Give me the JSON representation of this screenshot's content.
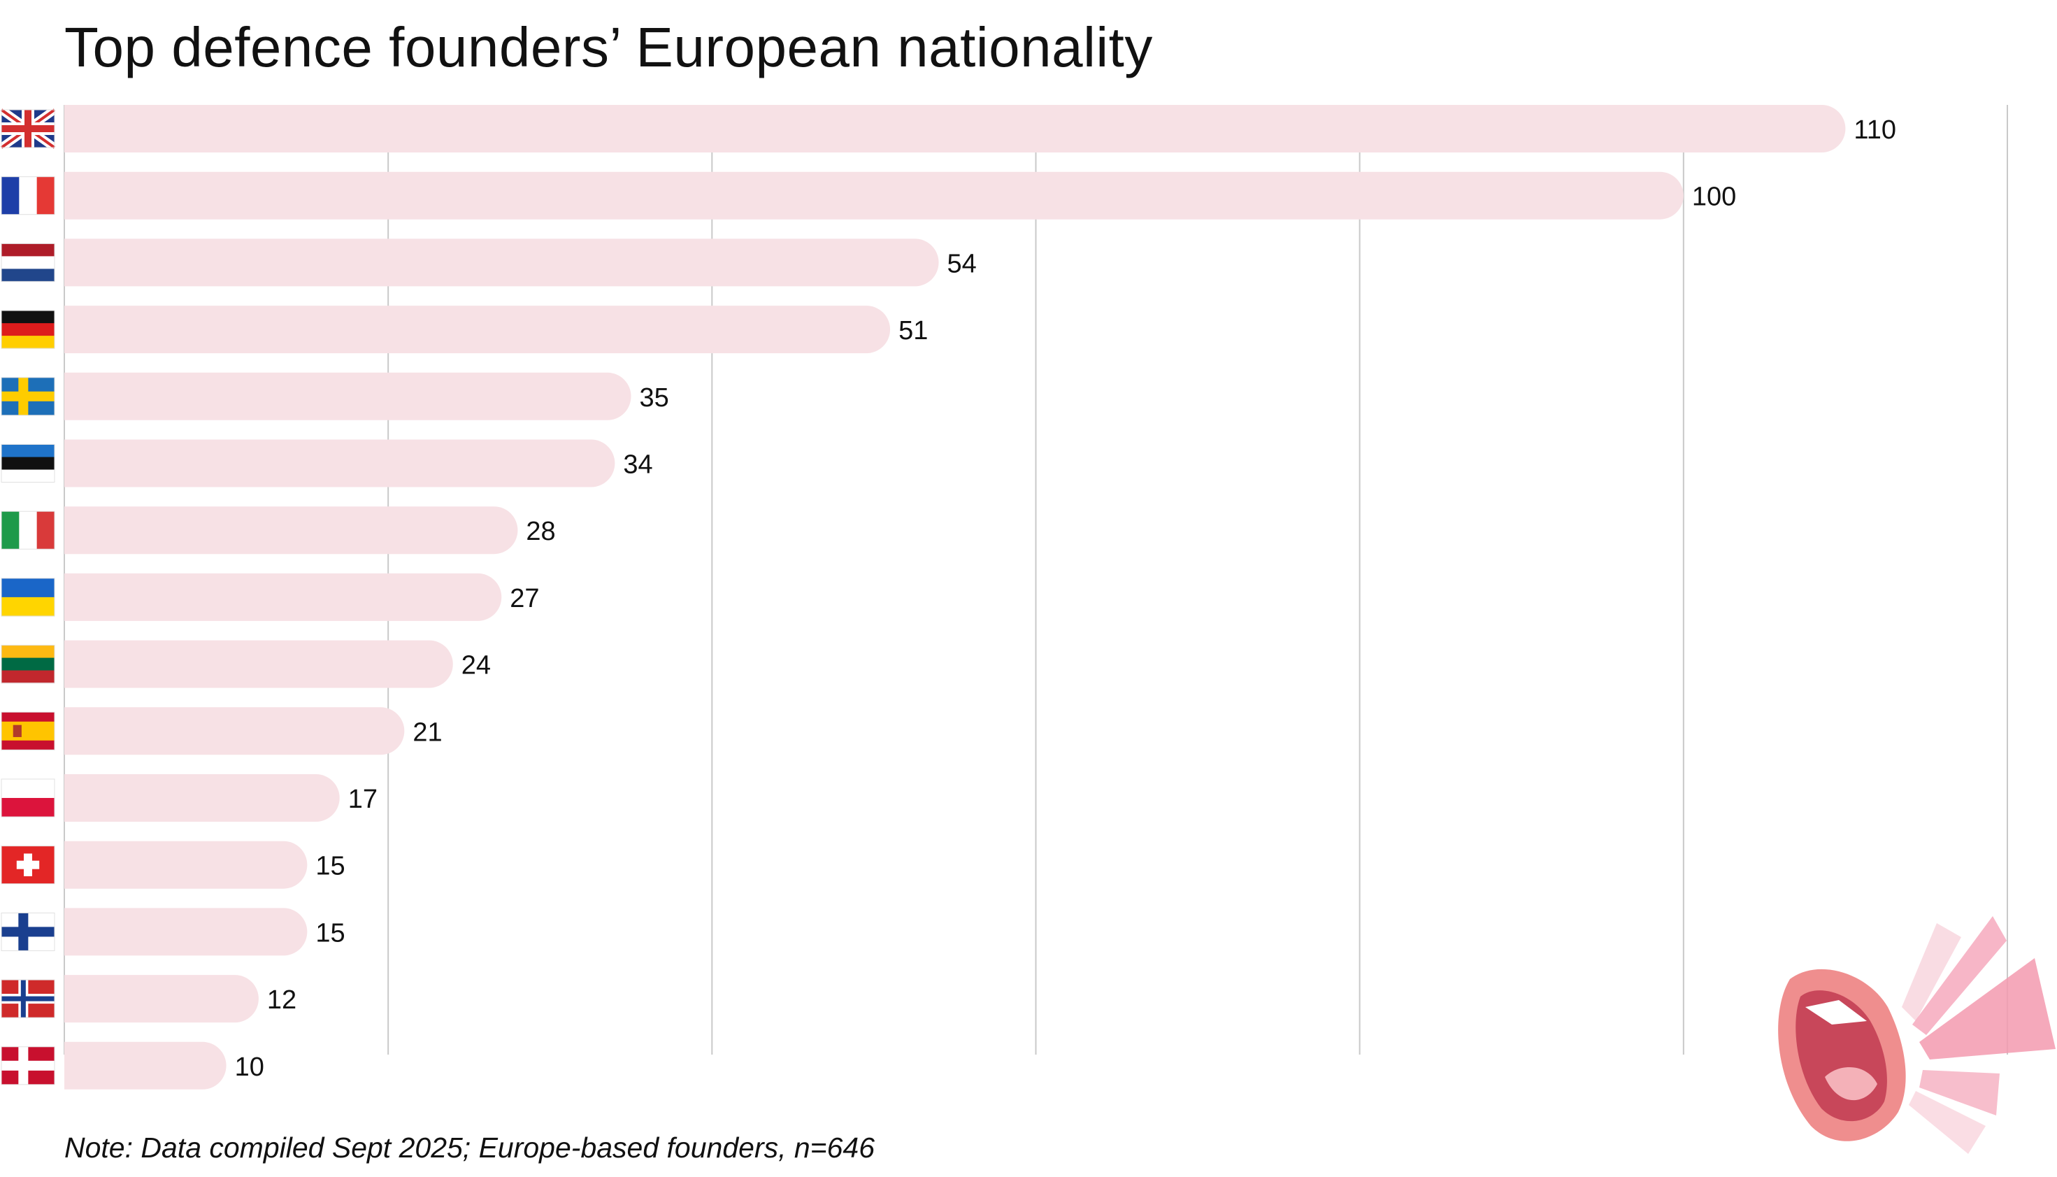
{
  "title": "Top defence founders’ European nationality",
  "note": "Note: Data compiled Sept 2025; Europe-based founders, n=646",
  "colors": {
    "bar": "#f7e1e5",
    "grid": "#c9c9c9",
    "text": "#111111"
  },
  "chart_data": {
    "type": "bar",
    "orientation": "horizontal",
    "title": "Top defence founders’ European nationality",
    "xlabel": "",
    "ylabel": "",
    "xlim": [
      0,
      120
    ],
    "grid": true,
    "categories": [
      "United Kingdom",
      "France",
      "Netherlands",
      "Germany",
      "Sweden",
      "Estonia",
      "Italy",
      "Ukraine",
      "Lithuania",
      "Spain",
      "Poland",
      "Switzerland",
      "Finland",
      "Norway",
      "Denmark"
    ],
    "flags": [
      "gb",
      "fr",
      "nl",
      "de",
      "se",
      "ee",
      "it",
      "ua",
      "lt",
      "es",
      "pl",
      "ch",
      "fi",
      "no",
      "dk"
    ],
    "values": [
      110,
      100,
      54,
      51,
      35,
      34,
      28,
      27,
      24,
      21,
      17,
      15,
      15,
      12,
      10
    ],
    "value_labels": [
      "110",
      "100",
      "54",
      "51",
      "35",
      "34",
      "28",
      "27",
      "24",
      "21",
      "17",
      "15",
      "15",
      "12",
      "10"
    ]
  }
}
